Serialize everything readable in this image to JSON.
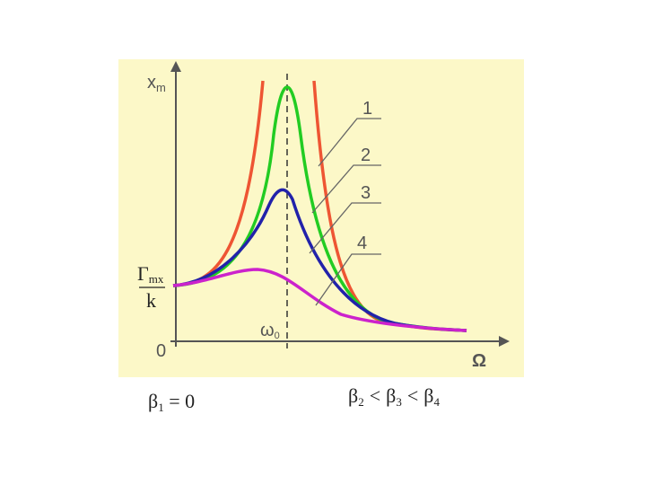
{
  "axes": {
    "y_label": {
      "main": "x",
      "sub": "m"
    },
    "origin": "0",
    "x_label": "Ω",
    "resonance": {
      "main": "ω",
      "sub": "0"
    },
    "static": {
      "numerator_main": "Γ",
      "numerator_sub": "mx",
      "denominator": "k"
    }
  },
  "curves": [
    {
      "label": "1"
    },
    {
      "label": "2"
    },
    {
      "label": "3"
    },
    {
      "label": "4"
    }
  ],
  "captions": {
    "left": {
      "main": "β",
      "sub": "1",
      "rest": " = 0"
    },
    "right": {
      "terms": [
        {
          "main": "β",
          "sub": "2"
        },
        {
          "main": "β",
          "sub": "3"
        },
        {
          "main": "β",
          "sub": "4"
        }
      ],
      "separator": "<"
    }
  }
}
